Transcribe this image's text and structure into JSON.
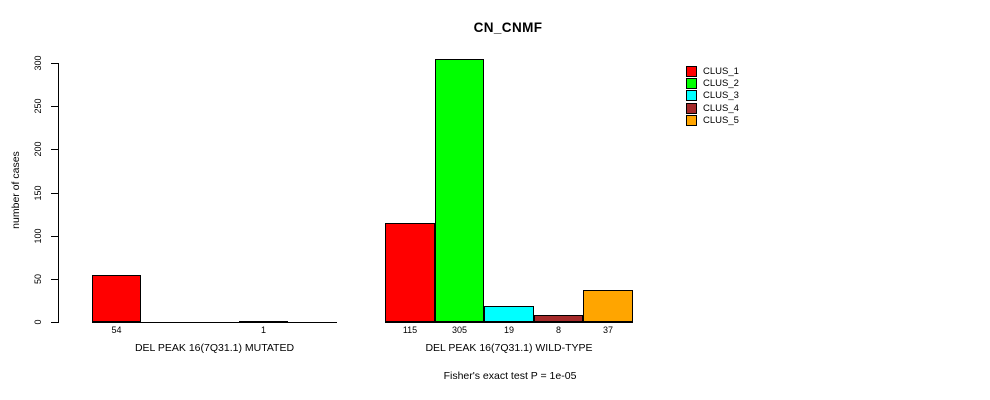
{
  "title": "CN_CNMF",
  "chart_data": {
    "type": "bar",
    "title": "CN_CNMF",
    "xlabel": "",
    "ylabel": "number of cases",
    "ylim": [
      0,
      300
    ],
    "yticks": [
      0,
      50,
      100,
      150,
      200,
      250,
      300
    ],
    "grid": false,
    "legend_position": "right",
    "clusters": [
      {
        "name": "CLUS_1",
        "color": "#ff0000"
      },
      {
        "name": "CLUS_2",
        "color": "#00ff00"
      },
      {
        "name": "CLUS_3",
        "color": "#00ffff"
      },
      {
        "name": "CLUS_4",
        "color": "#a52a2a"
      },
      {
        "name": "CLUS_5",
        "color": "#ffa500"
      }
    ],
    "groups": [
      {
        "label": "DEL PEAK 16(7Q31.1) MUTATED",
        "values": [
          54,
          0,
          0,
          1,
          0
        ],
        "value_labels": [
          "54",
          "",
          "",
          "1",
          ""
        ]
      },
      {
        "label": "DEL PEAK 16(7Q31.1) WILD-TYPE",
        "values": [
          115,
          305,
          19,
          8,
          37
        ],
        "value_labels": [
          "115",
          "305",
          "19",
          "8",
          "37"
        ]
      }
    ],
    "annotation": "Fisher's exact test P = 1e-05"
  }
}
